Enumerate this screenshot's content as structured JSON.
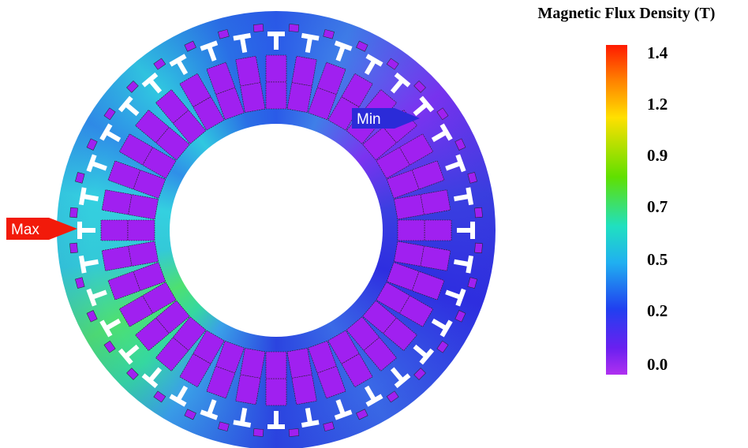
{
  "colorbar": {
    "title": "Magnetic Flux Density (T)",
    "labels": [
      "1.4",
      "1.2",
      "0.9",
      "0.7",
      "0.5",
      "0.2",
      "0.0"
    ]
  },
  "markers": {
    "max": "Max",
    "min": "Min"
  }
}
